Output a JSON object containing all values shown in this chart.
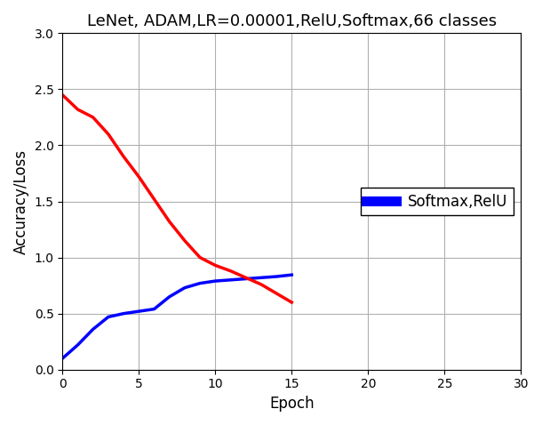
{
  "title": "LeNet, ADAM,LR=0.00001,RelU,Softmax,66 classes",
  "xlabel": "Epoch",
  "ylabel": "Accuracy/Loss",
  "xlim": [
    0,
    30
  ],
  "ylim": [
    0.0,
    3.0
  ],
  "xticks": [
    0,
    5,
    10,
    15,
    20,
    25,
    30
  ],
  "yticks": [
    0.0,
    0.5,
    1.0,
    1.5,
    2.0,
    2.5,
    3.0
  ],
  "blue_x": [
    0,
    1,
    2,
    3,
    4,
    5,
    6,
    7,
    8,
    9,
    10,
    11,
    12,
    13,
    14,
    15
  ],
  "blue_y": [
    0.1,
    0.22,
    0.36,
    0.47,
    0.5,
    0.52,
    0.54,
    0.65,
    0.73,
    0.77,
    0.79,
    0.8,
    0.81,
    0.82,
    0.83,
    0.845
  ],
  "red_x": [
    0,
    1,
    2,
    3,
    4,
    5,
    6,
    7,
    8,
    9,
    10,
    11,
    12,
    13,
    14,
    15
  ],
  "red_y": [
    2.45,
    2.32,
    2.25,
    2.1,
    1.9,
    1.72,
    1.52,
    1.32,
    1.15,
    1.0,
    0.93,
    0.88,
    0.82,
    0.76,
    0.68,
    0.6
  ],
  "blue_color": "#0000ff",
  "red_color": "#ff0000",
  "legend_label": "Softmax,RelU",
  "legend_loc": "center right",
  "background_color": "#ffffff",
  "grid_color": "#b0b0b0",
  "line_width": 2.5,
  "figsize": [
    6.1,
    4.78
  ],
  "dpi": 100
}
